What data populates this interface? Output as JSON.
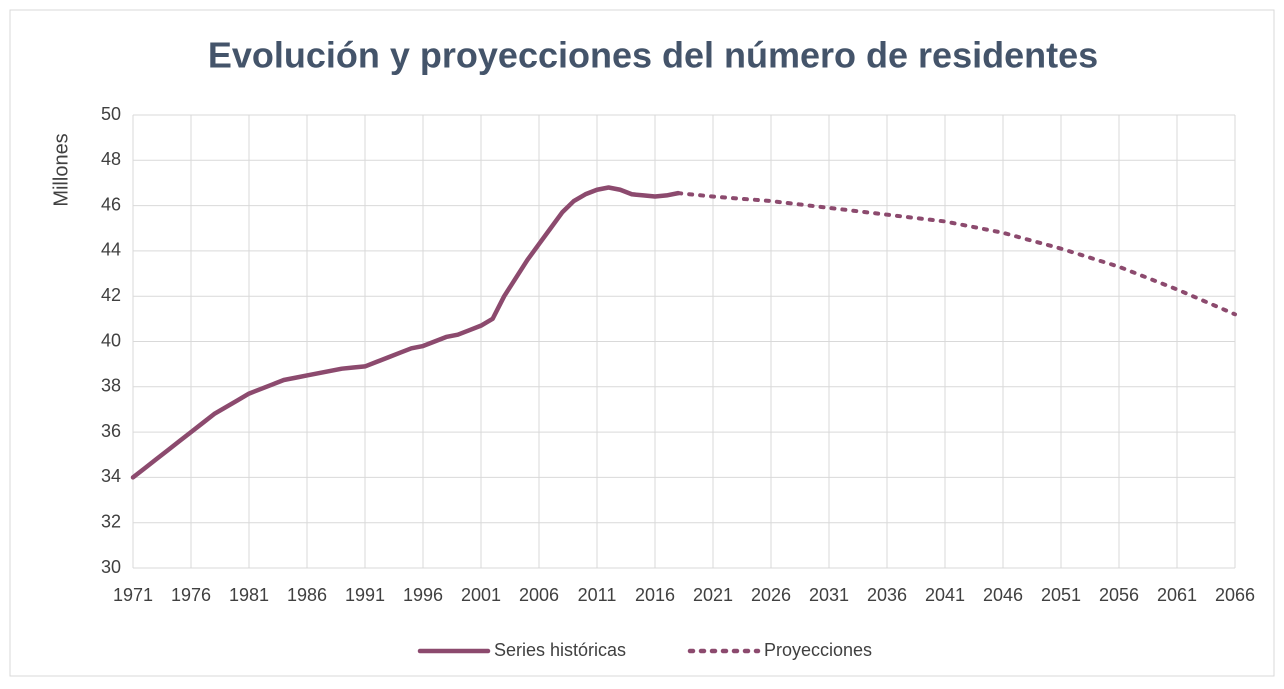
{
  "chart_data": {
    "type": "line",
    "title": "Evolución y proyecciones del número de residentes",
    "y_label": "Millones",
    "xlim": [
      1971,
      2066
    ],
    "xticks": [
      1971,
      1976,
      1981,
      1986,
      1991,
      1996,
      2001,
      2006,
      2011,
      2016,
      2021,
      2026,
      2031,
      2036,
      2041,
      2046,
      2051,
      2056,
      2061,
      2066
    ],
    "ylim": [
      30,
      50
    ],
    "yticks": [
      30,
      32,
      34,
      36,
      38,
      40,
      42,
      44,
      46,
      48,
      50
    ],
    "grid": true,
    "legend": "bottom",
    "series": [
      {
        "name": "Series históricas",
        "color": "#8c4a6e",
        "line_style": "solid",
        "x": [
          1971,
          1972,
          1973,
          1974,
          1975,
          1976,
          1977,
          1978,
          1979,
          1980,
          1981,
          1982,
          1983,
          1984,
          1985,
          1986,
          1987,
          1988,
          1989,
          1990,
          1991,
          1992,
          1993,
          1994,
          1995,
          1996,
          1997,
          1998,
          1999,
          2000,
          2001,
          2002,
          2003,
          2004,
          2005,
          2006,
          2007,
          2008,
          2009,
          2010,
          2011,
          2012,
          2013,
          2014,
          2015,
          2016,
          2017,
          2018
        ],
        "values": [
          34.0,
          34.4,
          34.8,
          35.2,
          35.6,
          36.0,
          36.4,
          36.8,
          37.1,
          37.4,
          37.7,
          37.9,
          38.1,
          38.3,
          38.4,
          38.5,
          38.6,
          38.7,
          38.8,
          38.85,
          38.9,
          39.1,
          39.3,
          39.5,
          39.7,
          39.8,
          40.0,
          40.2,
          40.3,
          40.5,
          40.7,
          41.0,
          42.0,
          42.8,
          43.6,
          44.3,
          45.0,
          45.7,
          46.2,
          46.5,
          46.7,
          46.8,
          46.7,
          46.5,
          46.45,
          46.4,
          46.45,
          46.55
        ]
      },
      {
        "name": "Proyecciones",
        "color": "#8c4a6e",
        "line_style": "dotted",
        "x": [
          2018,
          2021,
          2026,
          2031,
          2036,
          2041,
          2046,
          2051,
          2056,
          2061,
          2066
        ],
        "values": [
          46.55,
          46.4,
          46.2,
          45.9,
          45.6,
          45.3,
          44.8,
          44.1,
          43.3,
          42.3,
          41.2
        ]
      }
    ]
  }
}
